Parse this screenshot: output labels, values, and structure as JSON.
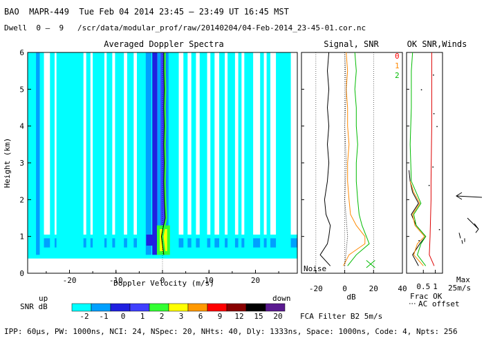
{
  "header": {
    "title": "BAO  MAPR-449  Tue Feb 04 2014 23:45 — 23:49 UT 16:45 MST",
    "dwell": "Dwell  0 —  9   /scr/data/modular_prof/raw/20140204/04-Feb-2014_23-45-01.cor.nc"
  },
  "footer": "IPP: 60μs, PW: 1000ns, NCI: 24, NSpec: 20, NHts: 40, Dly: 1333ns, Space: 1000ns, Code: 4, Npts: 256",
  "colors": {
    "cyan": "#00ffff",
    "blue1": "#00a0ff",
    "blue2": "#2020e0",
    "blue3": "#4040ff",
    "green": "#33ff33",
    "yellow": "#ffff00",
    "orange": "#ff9900",
    "red": "#ff0000",
    "dark_red": "#880000",
    "black": "#000000",
    "purple": "#5a1a90",
    "snr_line_green": "#00bb00",
    "snr_line_orange": "#ff8800",
    "winds_red": "#dd0000"
  },
  "chart_data": [
    {
      "type": "heatmap",
      "title": "Averaged Doppler Spectra",
      "xlabel": "Doppler Velocity (m/s)",
      "ylabel": "Height (km)",
      "x_range": [
        -29,
        29
      ],
      "y_range": [
        0,
        6
      ],
      "x_ticks": [
        -20,
        -10,
        0,
        10,
        20
      ],
      "y_ticks": [
        0,
        1,
        2,
        3,
        4,
        5,
        6
      ],
      "left_corner_label": "up",
      "right_corner_label": "down",
      "colorbar": {
        "label": "SNR dB",
        "ticks": [
          "-2",
          "-1",
          "0",
          "1",
          "2",
          "3",
          "6",
          "9",
          "12",
          "15",
          "20"
        ],
        "colors": [
          "#00ffff",
          "#00a0ff",
          "#2020e0",
          "#4040ff",
          "#33ff33",
          "#ffff00",
          "#ff9900",
          "#ff0000",
          "#880000",
          "#000000",
          "#5a1a90"
        ]
      },
      "peak_velocity_profile": {
        "height_km": [
          0.5,
          0.8,
          1.0,
          1.2,
          1.5,
          2.0,
          2.5,
          3.0,
          3.5,
          4.0,
          4.5,
          5.0,
          5.5,
          6.0
        ],
        "velocity_ms": [
          0.5,
          0.2,
          0.0,
          0.3,
          0.8,
          0.6,
          0.5,
          0.6,
          0.5,
          0.6,
          0.5,
          0.6,
          0.5,
          0.5
        ]
      }
    },
    {
      "type": "line",
      "title": "Signal, SNR",
      "xlabel": "dB",
      "x_range": [
        -30,
        40
      ],
      "x_ticks": [
        -20,
        0,
        20,
        40
      ],
      "y_range": [
        0,
        6
      ],
      "noise_label": "Noise",
      "series": [
        {
          "name": "black",
          "color": "#000000",
          "height_km": [
            0.2,
            0.5,
            0.8,
            1.0,
            1.3,
            1.6,
            2.0,
            2.5,
            3.0,
            3.5,
            4.0,
            4.5,
            5.0,
            5.5,
            6.0
          ],
          "db": [
            -10,
            -17,
            -12,
            -11,
            -10,
            -13,
            -14,
            -12,
            -11,
            -12,
            -11,
            -12,
            -11,
            -12,
            -11
          ]
        },
        {
          "name": "orange",
          "color": "#ff8800",
          "height_km": [
            0.2,
            0.5,
            0.8,
            1.0,
            1.3,
            1.6,
            2.0,
            2.5,
            3.0,
            3.5,
            4.0,
            4.5,
            5.0,
            5.5,
            6.0
          ],
          "db": [
            -1,
            3,
            14,
            14,
            8,
            4,
            3,
            2,
            2,
            3,
            2,
            2,
            1,
            2,
            1
          ]
        },
        {
          "name": "green",
          "color": "#00bb00",
          "height_km": [
            0.2,
            0.5,
            0.8,
            1.0,
            1.3,
            1.6,
            2.0,
            2.5,
            3.0,
            3.5,
            4.0,
            4.5,
            5.0,
            5.5,
            6.0
          ],
          "db": [
            2,
            8,
            17,
            15,
            12,
            10,
            9,
            8,
            8,
            9,
            8,
            8,
            7,
            8,
            7
          ]
        },
        {
          "name": "dotted",
          "color": "#000000",
          "height_km": [
            0.2,
            1.0,
            2.0,
            3.0,
            4.0,
            5.0,
            6.0
          ],
          "db": [
            0,
            2,
            0,
            1,
            0,
            1,
            0
          ]
        }
      ]
    },
    {
      "type": "line",
      "title": "OK SNR,Winds",
      "legend": [
        "0",
        "1",
        "2"
      ],
      "legend_colors": [
        "#ff0000",
        "#ff8800",
        "#00bb00"
      ],
      "x_range": [
        -0.2,
        1.3
      ],
      "x_ticks": [
        0.5,
        1
      ],
      "x_tick_labels": [
        "0.5",
        "1"
      ],
      "y_range": [
        0,
        6
      ],
      "bottom_labels": [
        "Frac OK",
        "AC offset"
      ],
      "max_label": "Max",
      "max_value": "25m/s",
      "series": [
        {
          "name": "red",
          "color": "#dd0000",
          "height_km": [
            0.2,
            0.5,
            1.0,
            1.5,
            2.0,
            2.5,
            3.0,
            4.0,
            5.0,
            6.0
          ],
          "frac": [
            0.95,
            0.75,
            0.78,
            0.8,
            0.82,
            0.82,
            0.83,
            0.85,
            0.85,
            0.85
          ]
        },
        {
          "name": "black",
          "color": "#000000",
          "height_km": [
            0.2,
            0.5,
            0.8,
            1.0,
            1.3,
            1.6,
            1.9,
            2.2,
            2.5,
            2.8
          ],
          "frac": [
            0.3,
            0.05,
            0.35,
            0.6,
            0.2,
            0.0,
            0.3,
            0.05,
            -0.05,
            -0.1
          ]
        },
        {
          "name": "orange",
          "color": "#ff8800",
          "height_km": [
            0.2,
            0.5,
            0.8,
            1.0,
            1.3,
            1.6,
            1.9,
            2.2,
            2.5
          ],
          "frac": [
            0.5,
            0.1,
            0.25,
            0.55,
            0.15,
            0.05,
            0.35,
            0.1,
            -0.05
          ]
        },
        {
          "name": "green",
          "color": "#00bb00",
          "height_km": [
            0.2,
            0.5,
            0.8,
            1.0,
            1.3,
            1.6,
            1.9,
            2.5,
            3.5,
            4.5,
            5.5,
            6.0
          ],
          "frac": [
            0.6,
            0.25,
            0.4,
            0.6,
            0.2,
            0.1,
            0.4,
            0.0,
            -0.05,
            0.0,
            0.0,
            0.05
          ]
        }
      ],
      "wind_arrow_height_km": 2.1
    }
  ],
  "footer_filter": "FCA Filter B2  5m/s"
}
